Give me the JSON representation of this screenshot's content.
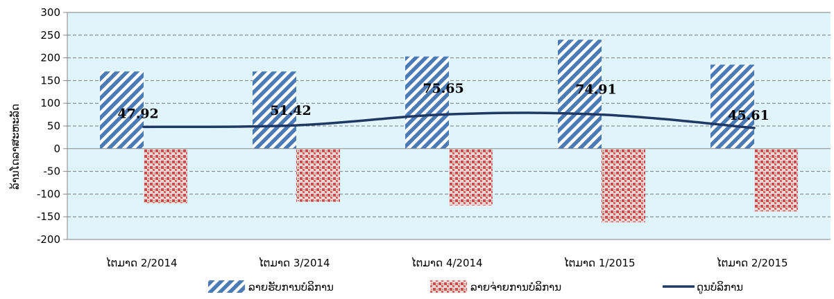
{
  "chart_data": {
    "type": "bar",
    "ylabel": "ລ້ານໂດລາສະຫະລັດ",
    "ylim": [
      -200,
      300
    ],
    "ytick_step": 50,
    "grid": true,
    "legend_position": "bottom",
    "categories": [
      "ໄຕມາດ 2/2014",
      "ໄຕມາດ 3/2014",
      "ໄຕມາດ 4/2014",
      "ໄຕມາດ 1/2015",
      "ໄຕມາດ 2/2015"
    ],
    "series": [
      {
        "name": "ລາຍຮັບການບໍລິການ",
        "kind": "bar",
        "pattern": "diagonal-stripes",
        "color": "#4a7bb7",
        "values": [
          170,
          170,
          203,
          240,
          185
        ]
      },
      {
        "name": "ລາຍຈ່າຍການບໍລິການ",
        "kind": "bar",
        "pattern": "red-dots",
        "color": "#c0504d",
        "values": [
          -120,
          -117,
          -125,
          -162,
          -138
        ]
      },
      {
        "name": "ດູນບໍລິການ",
        "kind": "line",
        "color": "#1f3864",
        "values": [
          47.92,
          51.42,
          75.65,
          74.91,
          45.61
        ],
        "labels": [
          "47.92",
          "51.42",
          "75.65",
          "74.91",
          "45.61"
        ]
      }
    ],
    "plot_background": "#dff4fb"
  }
}
